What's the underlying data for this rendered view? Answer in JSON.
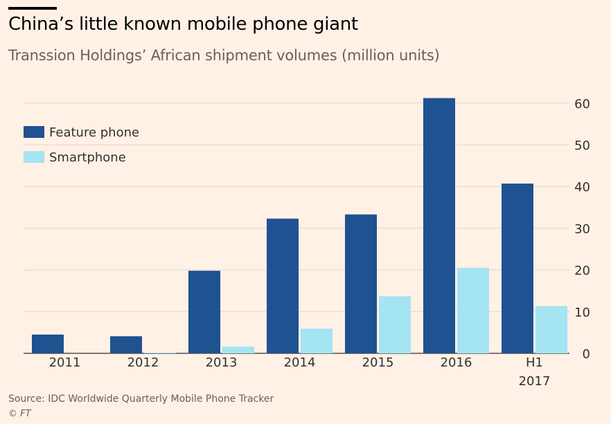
{
  "title": "China’s little known mobile phone giant",
  "subtitle": "Transsion Holdings’ African shipment volumes (million units)",
  "source": "Source: IDC Worldwide Quarterly Mobile Phone Tracker",
  "credit": "© FT",
  "colors": {
    "feature": "#1f5290",
    "smart": "#a5e4f2",
    "grid": "#e0d5cc",
    "axis": "#33302e",
    "background": "#fff1e6"
  },
  "chart_data": {
    "type": "bar",
    "categories": [
      "2011",
      "2012",
      "2013",
      "2014",
      "2015",
      "2016",
      "H1 2017"
    ],
    "category_lines": [
      [
        "2011"
      ],
      [
        "2012"
      ],
      [
        "2013"
      ],
      [
        "2014"
      ],
      [
        "2015"
      ],
      [
        "2016"
      ],
      [
        "H1",
        "2017"
      ]
    ],
    "series": [
      {
        "name": "Feature phone",
        "values": [
          4.5,
          4.1,
          19.8,
          32.3,
          33.3,
          61.2,
          40.7
        ]
      },
      {
        "name": "Smartphone",
        "values": [
          0,
          0.2,
          1.6,
          5.9,
          13.7,
          20.5,
          11.3
        ]
      }
    ],
    "yticks": [
      0,
      10,
      20,
      30,
      40,
      50,
      60
    ],
    "ylim": [
      0,
      65
    ],
    "grid": true,
    "y_axis_side": "right",
    "legend_position": "top-left"
  }
}
